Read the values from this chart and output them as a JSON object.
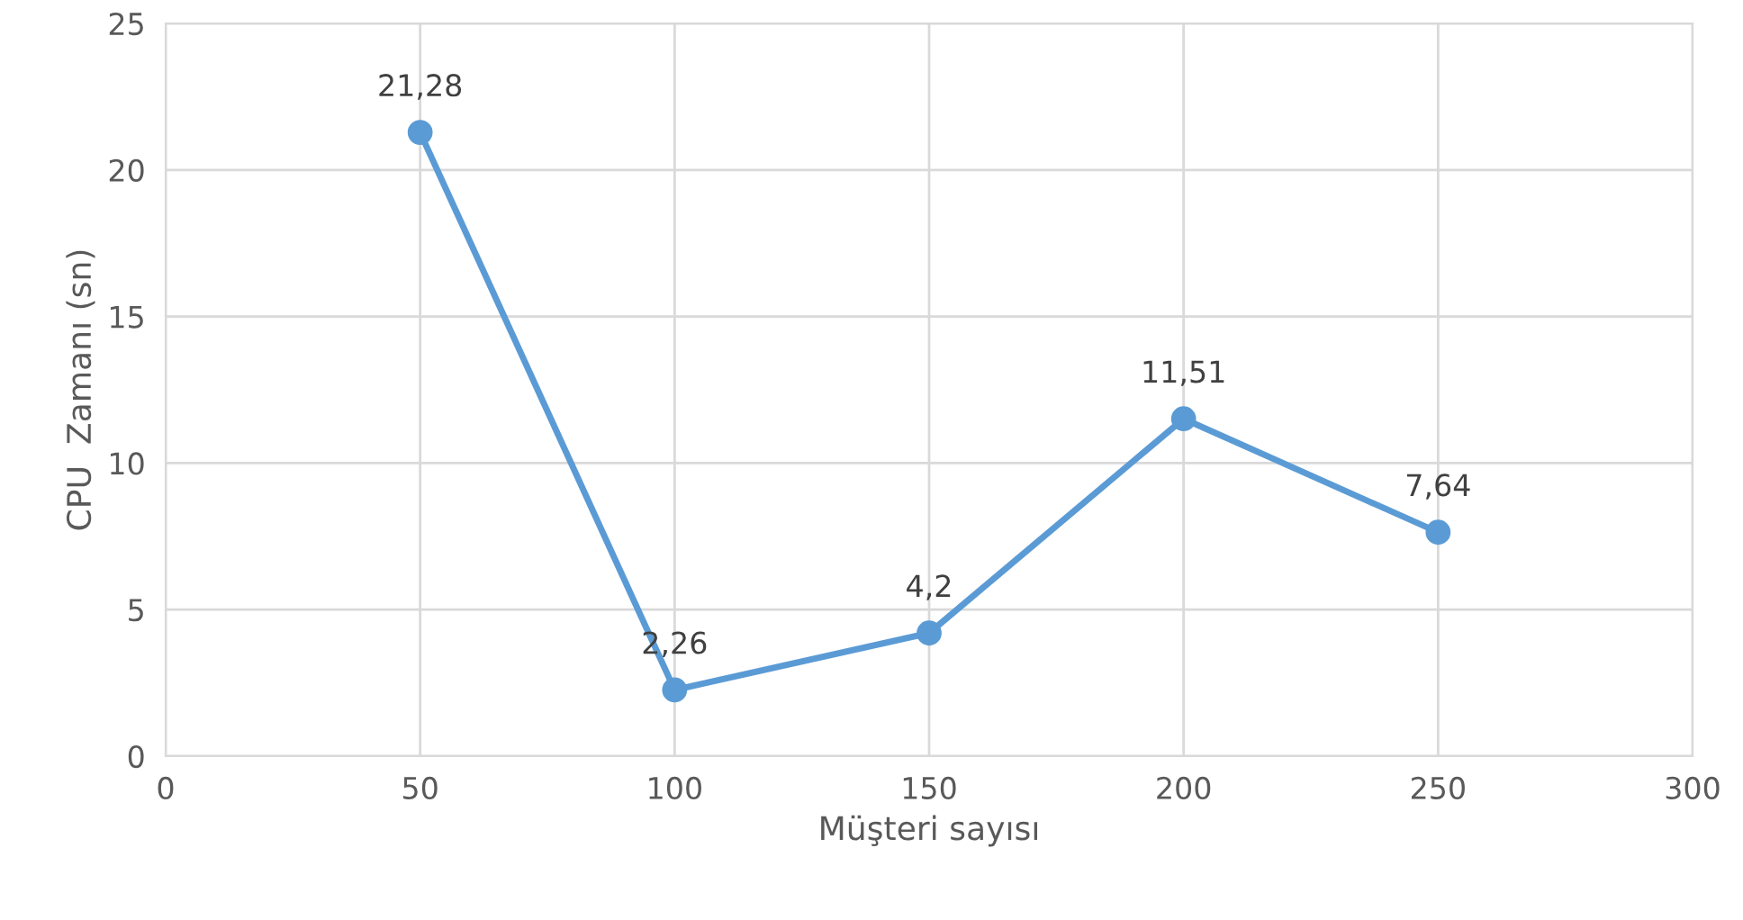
{
  "chart_data": {
    "type": "line",
    "xlabel": "Müşteri sayısı",
    "ylabel": "CPU  Zamanı (sn)",
    "x": [
      50,
      100,
      150,
      200,
      250
    ],
    "series": [
      {
        "color": "#5b9bd5",
        "values": [
          21.28,
          2.26,
          4.2,
          11.51,
          7.64
        ],
        "value_labels": [
          "21,28",
          "2,26",
          "4,2",
          "11,51",
          "7,64"
        ]
      }
    ],
    "xlim": [
      0,
      300
    ],
    "xticks": [
      0,
      50,
      100,
      150,
      200,
      250,
      300
    ],
    "ylim": [
      0,
      25
    ],
    "yticks": [
      0,
      5,
      10,
      15,
      20,
      25
    ],
    "grid": true,
    "marker": "circle",
    "line_style": "solid"
  }
}
